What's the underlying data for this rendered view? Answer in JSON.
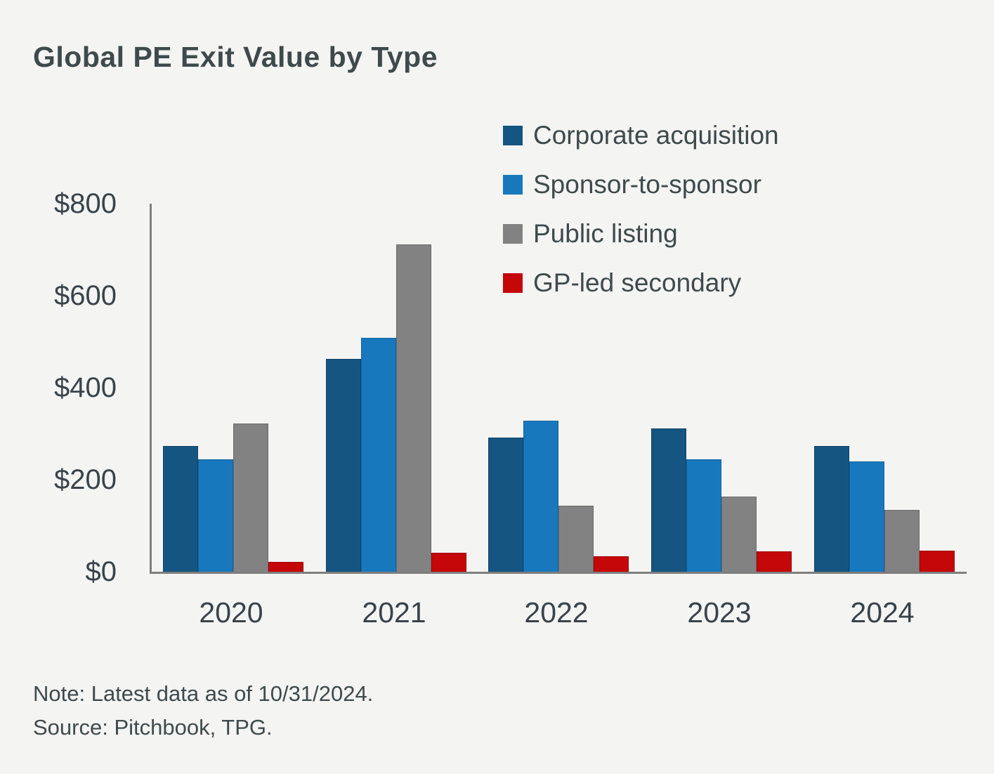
{
  "title": "Global PE Exit Value by Type",
  "footnote": {
    "note": "Note: Latest data as of 10/31/2024.",
    "source": "Source: Pitchbook, TPG."
  },
  "chart_data": {
    "type": "bar",
    "title": "Global PE Exit Value by Type",
    "categories": [
      "2020",
      "2021",
      "2022",
      "2023",
      "2024"
    ],
    "series": [
      {
        "key": "corporate-acquisition",
        "name": "Corporate acquisition",
        "color": "#155581",
        "values": [
          273,
          463,
          292,
          311,
          273
        ]
      },
      {
        "key": "sponsor-to-sponsor",
        "name": "Sponsor-to-sponsor",
        "color": "#1878BE",
        "values": [
          244,
          508,
          328,
          244,
          240
        ]
      },
      {
        "key": "public-listing",
        "name": "Public listing",
        "color": "#828282",
        "values": [
          322,
          711,
          143,
          163,
          134
        ]
      },
      {
        "key": "gp-led-secondary",
        "name": "GP-led secondary",
        "color": "#C40708",
        "values": [
          21,
          41,
          33,
          44,
          46
        ]
      }
    ],
    "xlabel": "",
    "ylabel": "",
    "ylim": [
      0,
      800
    ],
    "yticks": [
      {
        "value": 0,
        "label": "$0"
      },
      {
        "value": 200,
        "label": "$200"
      },
      {
        "value": 400,
        "label": "$400"
      },
      {
        "value": 600,
        "label": "$600"
      },
      {
        "value": 800,
        "label": "$800"
      }
    ],
    "grid": false,
    "legend_position": "top-right",
    "axis_color": "#7E7E7E",
    "text_color": "#3E4A4C"
  }
}
